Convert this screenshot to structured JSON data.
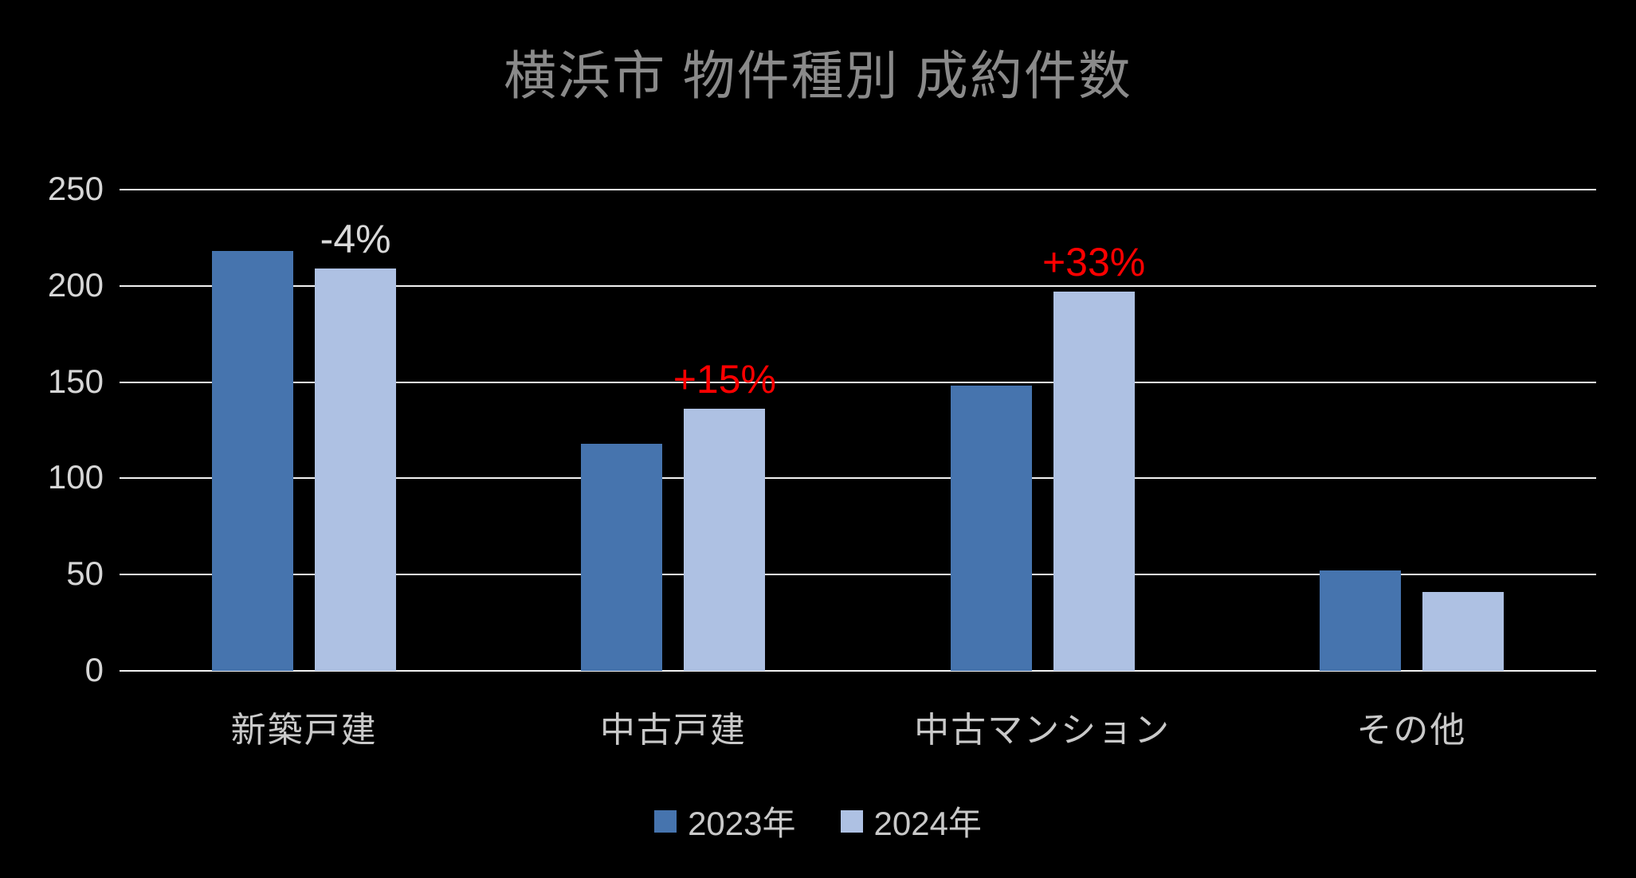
{
  "title": "横浜市 物件種別 成約件数",
  "colors": {
    "background": "#000000",
    "series_2023": "#4674ae",
    "series_2024": "#aec1e3",
    "gridline": "#f2f2f2",
    "title_text": "#8a8a8a",
    "axis_text": "#d6d6d6",
    "category_text": "#c9c9c9",
    "annotation_negative": "#d9d9d9",
    "annotation_positive": "#ff0000"
  },
  "legend": {
    "items": [
      {
        "label": "2023年",
        "color": "#4674ae"
      },
      {
        "label": "2024年",
        "color": "#aec1e3"
      }
    ]
  },
  "chart_data": {
    "type": "bar",
    "title": "横浜市 物件種別 成約件数",
    "categories": [
      "新築戸建",
      "中古戸建",
      "中古マンション",
      "その他"
    ],
    "series": [
      {
        "name": "2023年",
        "color": "#4674ae",
        "values": [
          218,
          118,
          148,
          52
        ]
      },
      {
        "name": "2024年",
        "color": "#aec1e3",
        "values": [
          209,
          136,
          197,
          41
        ]
      }
    ],
    "annotations": [
      {
        "category": "新築戸建",
        "text": "-4%",
        "color": "#d9d9d9"
      },
      {
        "category": "中古戸建",
        "text": "+15%",
        "color": "#ff0000"
      },
      {
        "category": "中古マンション",
        "text": "+33%",
        "color": "#ff0000"
      },
      {
        "category": "その他",
        "text": "",
        "color": ""
      }
    ],
    "xlabel": "",
    "ylabel": "",
    "ylim": [
      0,
      250
    ],
    "yticks": [
      0,
      50,
      100,
      150,
      200,
      250
    ],
    "grid": true,
    "legend_position": "bottom"
  }
}
